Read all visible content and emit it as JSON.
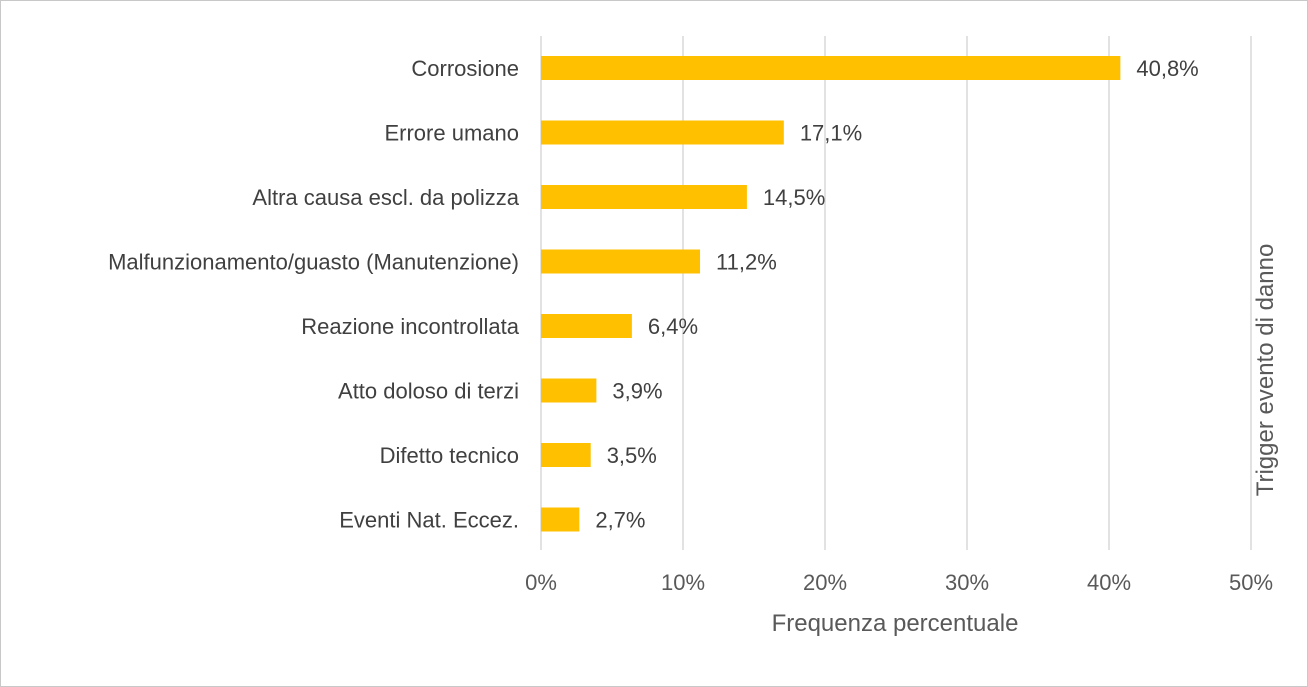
{
  "chart_data": {
    "type": "bar",
    "orientation": "horizontal",
    "categories": [
      "Corrosione",
      "Errore umano",
      "Altra causa escl. da polizza",
      "Malfunzionamento/guasto (Manutenzione)",
      "Reazione incontrollata",
      "Atto doloso di terzi",
      "Difetto tecnico",
      "Eventi Nat. Eccez."
    ],
    "values": [
      40.8,
      17.1,
      14.5,
      11.2,
      6.4,
      3.9,
      3.5,
      2.7
    ],
    "data_labels": [
      "40,8%",
      "17,1%",
      "14,5%",
      "11,2%",
      "6,4%",
      "3,9%",
      "3,5%",
      "2,7%"
    ],
    "xlabel": "Frequenza percentuale",
    "ylabel": "Trigger evento di danno",
    "xlim": [
      0,
      50
    ],
    "x_ticks": [
      0,
      10,
      20,
      30,
      40,
      50
    ],
    "x_tick_labels": [
      "0%",
      "10%",
      "20%",
      "30%",
      "40%",
      "50%"
    ],
    "grid": "vertical",
    "legend": "none",
    "colors": {
      "bar": "#FFC000",
      "grid": "#D9D9D9",
      "frame": "#C8C8C8"
    }
  }
}
